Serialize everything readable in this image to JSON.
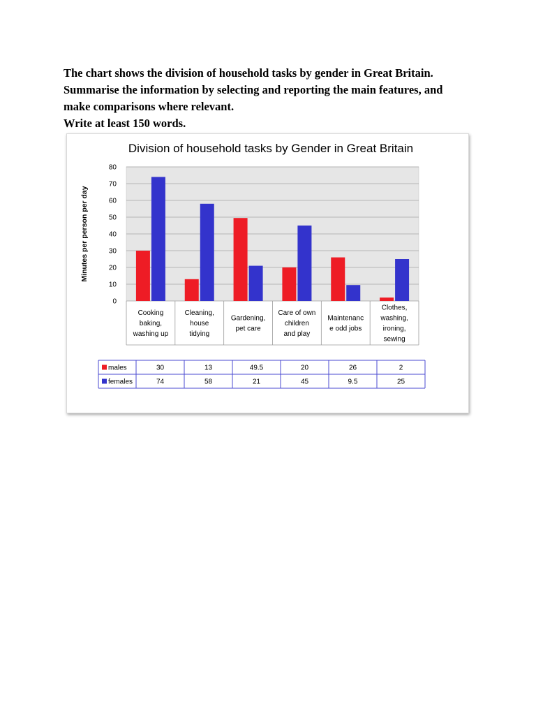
{
  "prompt": {
    "line1": "The chart shows the division of household tasks by gender in Great Britain.",
    "line2": "Summarise the information by selecting and reporting the main features, and",
    "line3": "make comparisons where relevant.",
    "line4": "Write at least 150 words."
  },
  "chart_data": {
    "type": "bar",
    "title": "Division of household tasks by Gender in Great Britain",
    "ylabel": "Minutes per person per day",
    "xlabel": "",
    "ylim": [
      0,
      80
    ],
    "yticks": [
      0,
      10,
      20,
      30,
      40,
      50,
      60,
      70,
      80
    ],
    "grid": true,
    "legend": "data-table-below",
    "categories": [
      [
        "Cooking",
        "baking,",
        "washing up"
      ],
      [
        "Cleaning,",
        "house",
        "tidying"
      ],
      [
        "Gardening,",
        "pet care"
      ],
      [
        "Care of own",
        "children",
        "and play"
      ],
      [
        "Maintenanc",
        "e odd jobs"
      ],
      [
        "Clothes,",
        "washing,",
        "ironing,",
        "sewing"
      ]
    ],
    "series": [
      {
        "name": "males",
        "color": "#ee1c25",
        "values": [
          30,
          13,
          49.5,
          20,
          26,
          2
        ]
      },
      {
        "name": "females",
        "color": "#3333cc",
        "values": [
          74,
          58,
          21,
          45,
          9.5,
          25
        ]
      }
    ]
  }
}
